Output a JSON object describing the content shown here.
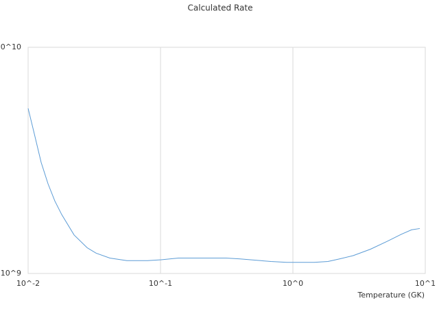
{
  "chart_data": {
    "type": "line",
    "title": "Calculated Rate",
    "x_label": "Temperature (GK)",
    "x": [
      0.01,
      0.01113,
      0.01254,
      0.01414,
      0.01592,
      0.01795,
      0.02224,
      0.0279,
      0.0326,
      0.04139,
      0.05572,
      0.0798,
      0.1012,
      0.1364,
      0.163,
      0.314,
      0.399,
      0.682,
      0.898,
      1.448,
      1.84,
      2.25,
      2.86,
      3.85,
      5.19,
      6.59,
      7.88,
      9.09
    ],
    "series": [
      {
        "color": "#5b9bd5",
        "values": [
          5370000000,
          4150000000,
          3100000000,
          2490000000,
          2090000000,
          1820000000,
          1480000000,
          1300000000,
          1230000000,
          1170000000,
          1140000000,
          1140000000,
          1150000000,
          1170000000,
          1170000000,
          1170000000,
          1160000000,
          1130000000,
          1120000000,
          1120000000,
          1130000000,
          1160000000,
          1200000000,
          1280000000,
          1390000000,
          1490000000,
          1560000000,
          1580000000
        ]
      }
    ],
    "xlim": [
      0.01,
      10
    ],
    "ylim": [
      1000000000,
      10000000000
    ],
    "xticks": [
      {
        "value": 0.01,
        "label": "10^-2"
      },
      {
        "value": 0.1,
        "label": "10^-1"
      },
      {
        "value": 1,
        "label": "10^0"
      },
      {
        "value": 10,
        "label": "10^1"
      }
    ],
    "yticks": [
      {
        "value": 1000000000,
        "label": "10^9"
      },
      {
        "value": 10000000000,
        "label": "10^10"
      }
    ],
    "xscale": "log",
    "yscale": "log",
    "grid": true
  }
}
